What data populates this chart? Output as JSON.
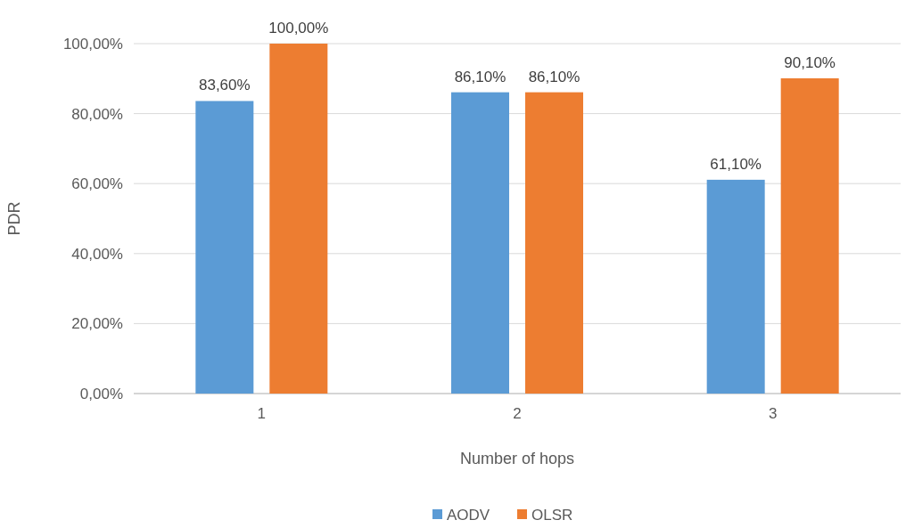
{
  "chart_data": {
    "type": "bar",
    "xlabel": "Number of hops",
    "ylabel": "PDR",
    "categories": [
      "1",
      "2",
      "3"
    ],
    "series": [
      {
        "name": "AODV",
        "color": "#5b9bd5",
        "values": [
          83.6,
          86.1,
          61.1
        ],
        "value_labels": [
          "83,60%",
          "86,10%",
          "61,10%"
        ]
      },
      {
        "name": "OLSR",
        "color": "#ed7d31",
        "values": [
          100,
          86.1,
          90.1
        ],
        "value_labels": [
          "100,00%",
          "86,10%",
          "90,10%"
        ]
      }
    ],
    "ylim": [
      0,
      100
    ],
    "yticks": [
      {
        "value": 0,
        "label": "0,00%"
      },
      {
        "value": 20,
        "label": "20,00%"
      },
      {
        "value": 40,
        "label": "40,00%"
      },
      {
        "value": 60,
        "label": "60,00%"
      },
      {
        "value": 80,
        "label": "80,00%"
      },
      {
        "value": 100,
        "label": "100,00%"
      }
    ],
    "grid": "y",
    "legend": "bottom"
  }
}
